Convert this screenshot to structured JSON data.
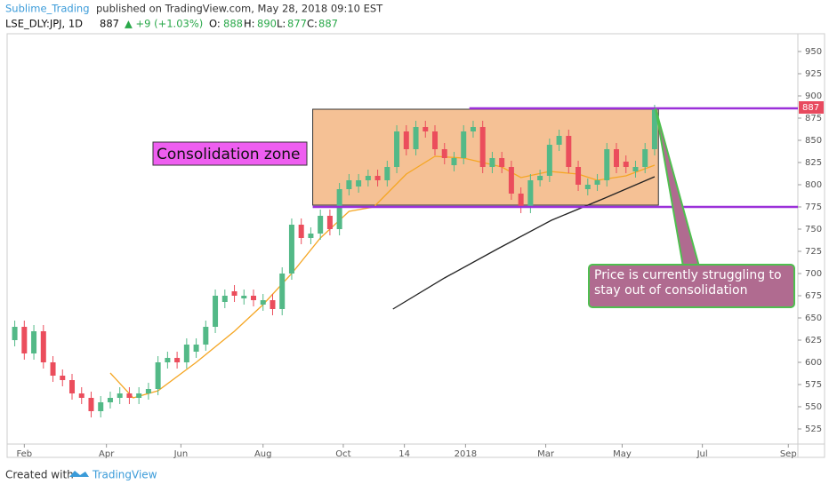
{
  "header": {
    "author": "Sublime_Trading",
    "published": "published on TradingView.com, May 28, 2018 09:10 EST",
    "symbol": "LSE_DLY:JPJ, 1D",
    "last": "887",
    "change": "▲ +9 (+1.03%)",
    "open_label": "O:",
    "open": "888",
    "high_label": "H:",
    "high": "890",
    "low_label": "L:",
    "low": "877",
    "close_label": "C:",
    "close": "887"
  },
  "footer": {
    "created": "Created with",
    "brand": "TradingView"
  },
  "chart_data": {
    "type": "candlestick",
    "up_color": "#53b987",
    "down_color": "#eb4d5c",
    "x": [
      -5,
      0,
      5,
      10,
      15,
      20,
      25,
      30,
      35,
      40,
      45,
      50,
      55,
      60,
      65,
      70,
      75,
      80,
      85,
      90,
      95,
      100,
      105,
      110,
      115,
      120,
      125,
      130,
      135,
      140,
      145,
      150,
      155,
      160,
      165,
      170,
      175,
      180,
      185,
      190,
      195,
      200,
      205,
      210,
      215,
      220,
      225,
      230,
      235,
      240,
      245,
      250,
      255,
      260,
      265,
      270,
      275,
      280,
      285,
      290,
      295,
      300,
      305,
      310,
      315,
      320,
      325,
      330
    ],
    "open": [
      625,
      640,
      610,
      635,
      600,
      585,
      580,
      565,
      560,
      545,
      555,
      560,
      565,
      560,
      565,
      570,
      600,
      605,
      600,
      612,
      620,
      640,
      668,
      680,
      672,
      675,
      665,
      670,
      660,
      700,
      755,
      740,
      745,
      765,
      750,
      795,
      798,
      805,
      810,
      805,
      820,
      860,
      840,
      865,
      860,
      840,
      822,
      830,
      860,
      865,
      820,
      830,
      820,
      790,
      775,
      805,
      810,
      845,
      855,
      820,
      795,
      800,
      805,
      840,
      826,
      815,
      820,
      840
    ],
    "high": [
      647,
      647,
      642,
      642,
      607,
      592,
      587,
      572,
      567,
      562,
      567,
      572,
      572,
      572,
      577,
      607,
      612,
      612,
      627,
      627,
      647,
      682,
      682,
      687,
      682,
      682,
      677,
      677,
      707,
      762,
      762,
      752,
      772,
      772,
      802,
      812,
      812,
      817,
      817,
      827,
      867,
      867,
      872,
      872,
      867,
      847,
      837,
      867,
      872,
      872,
      837,
      837,
      827,
      797,
      812,
      817,
      852,
      862,
      862,
      827,
      807,
      812,
      847,
      847,
      833,
      827,
      847,
      890
    ],
    "low": [
      618,
      603,
      603,
      593,
      578,
      573,
      558,
      553,
      538,
      538,
      548,
      553,
      553,
      553,
      558,
      563,
      593,
      593,
      593,
      605,
      613,
      633,
      661,
      668,
      665,
      663,
      658,
      653,
      653,
      693,
      733,
      733,
      738,
      743,
      743,
      788,
      791,
      798,
      798,
      798,
      813,
      833,
      833,
      853,
      833,
      823,
      815,
      823,
      853,
      813,
      813,
      813,
      783,
      768,
      768,
      798,
      803,
      838,
      813,
      793,
      788,
      793,
      798,
      813,
      813,
      808,
      813,
      833
    ],
    "close": [
      640,
      610,
      635,
      600,
      585,
      580,
      565,
      560,
      545,
      555,
      560,
      565,
      560,
      565,
      570,
      600,
      605,
      600,
      620,
      620,
      640,
      675,
      675,
      675,
      675,
      670,
      670,
      660,
      700,
      755,
      740,
      745,
      765,
      750,
      795,
      805,
      805,
      810,
      805,
      820,
      860,
      840,
      865,
      860,
      840,
      830,
      830,
      860,
      865,
      820,
      830,
      820,
      790,
      775,
      805,
      810,
      845,
      855,
      820,
      800,
      800,
      805,
      840,
      820,
      820,
      820,
      840,
      887
    ],
    "lines": [
      {
        "color": "#f5a623",
        "x": [
          45,
          57,
          70,
          90,
          110,
          125,
          140,
          155,
          170,
          183,
          200,
          215,
          230,
          250,
          260,
          275,
          290,
          300,
          315,
          330
        ],
        "values": [
          588,
          560,
          568,
          600,
          635,
          665,
          700,
          740,
          770,
          775,
          812,
          832,
          830,
          820,
          808,
          815,
          812,
          805,
          810,
          822
        ]
      },
      {
        "color": "#222222",
        "x": [
          193,
          220,
          248,
          276,
          304,
          330
        ],
        "values": [
          660,
          695,
          728,
          760,
          785,
          809
        ]
      }
    ],
    "levels": [
      {
        "value": 775,
        "x_start": 151,
        "color": "#9b30d9"
      },
      {
        "value": 886,
        "x_start": 233,
        "color": "#9b30d9"
      }
    ],
    "zone": {
      "x": [
        151,
        332
      ],
      "y": [
        777,
        885
      ],
      "color": "#f2b27a"
    },
    "annotations": [
      "Consolidation zone",
      "Price is currently struggling to stay out of consolidation"
    ],
    "xlim": [
      -9,
      405
    ],
    "ylim": [
      508,
      968
    ],
    "xticks": [
      {
        "value": 0,
        "label": "Feb"
      },
      {
        "value": 43,
        "label": "Apr"
      },
      {
        "value": 82,
        "label": "Jun"
      },
      {
        "value": 125,
        "label": "Aug"
      },
      {
        "value": 167,
        "label": "Oct"
      },
      {
        "value": 199,
        "label": "14"
      },
      {
        "value": 231,
        "label": "2018"
      },
      {
        "value": 273,
        "label": "Mar"
      },
      {
        "value": 313,
        "label": "May"
      },
      {
        "value": 355,
        "label": "Jul"
      },
      {
        "value": 400,
        "label": "Sep"
      }
    ],
    "yticks": [
      525,
      550,
      575,
      600,
      625,
      650,
      675,
      700,
      725,
      750,
      775,
      800,
      825,
      850,
      875,
      900,
      925,
      950
    ]
  }
}
